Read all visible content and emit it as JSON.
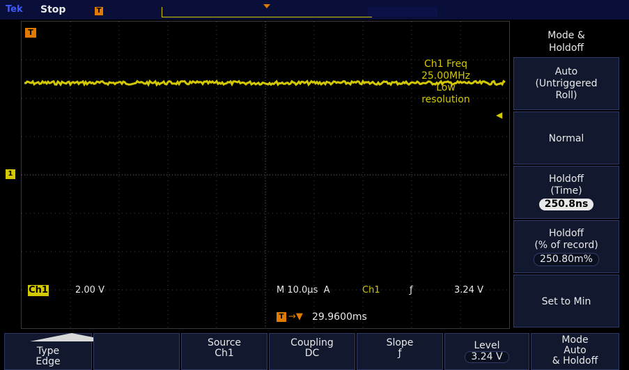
{
  "status": {
    "brand": "Tek",
    "run_state": "Stop"
  },
  "markers": {
    "trigger_pos": "T",
    "ch1": "1",
    "trigger_level_arrow": "◀",
    "top_trigger": "T"
  },
  "measurement": {
    "line1": "Ch1 Freq",
    "line2": "25.00MHz",
    "line3": "Low",
    "line4": "resolution"
  },
  "readout": {
    "ch1_label": "Ch1",
    "ch1_scale": "2.00 V",
    "timebase": "M 10.0µs  A",
    "trigger_channel": "Ch1",
    "slope_symbol": "ƒ",
    "trigger_level": "3.24 V",
    "delay_icon": "T",
    "delay_arrow": "→▼",
    "delay_value": "29.9600ms"
  },
  "side_menu": {
    "title_line1": "Mode &",
    "title_line2": "Holdoff",
    "auto_line1": "Auto",
    "auto_line2": "(Untriggered",
    "auto_line3": "Roll)",
    "normal": "Normal",
    "holdoff_time_line1": "Holdoff",
    "holdoff_time_line2": "(Time)",
    "holdoff_time_value": "250.8ns",
    "holdoff_pct_line1": "Holdoff",
    "holdoff_pct_line2": "(% of record)",
    "holdoff_pct_value": "250.80m%",
    "set_to_min": "Set to Min"
  },
  "bottom_menu": {
    "type_label": "Type",
    "type_value": "Edge",
    "source_label": "Source",
    "source_value": "Ch1",
    "coupling_label": "Coupling",
    "coupling_value": "DC",
    "slope_label": "Slope",
    "slope_value": "ƒ",
    "level_label": "Level",
    "level_value": "3.24 V",
    "mode_line1": "Mode",
    "mode_line2": "Auto",
    "mode_line3": "& Holdoff"
  },
  "colors": {
    "trace": "#d4c800",
    "trigger_marker": "#e07a00",
    "menu_bg": "#12192e",
    "brand": "#3b5bff"
  }
}
